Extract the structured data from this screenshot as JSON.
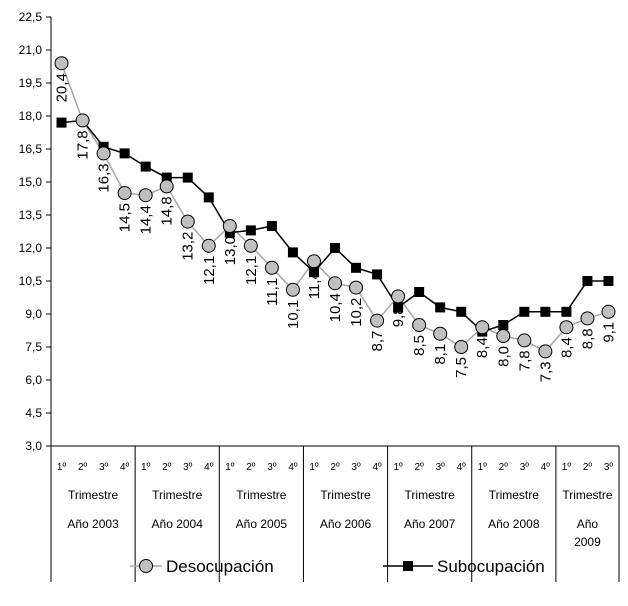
{
  "chart_data": {
    "type": "line",
    "ylim": [
      3.0,
      22.5
    ],
    "yticks": [
      "3,0",
      "4,5",
      "6,0",
      "7,5",
      "9,0",
      "10,5",
      "12,0",
      "13,5",
      "15,0",
      "16,5",
      "18,0",
      "19,5",
      "21,0",
      "22,5"
    ],
    "quarter_labels": [
      "1º",
      "2º",
      "3º",
      "4º",
      "1º",
      "2º",
      "3º",
      "4º",
      "1º",
      "2º",
      "3º",
      "4º",
      "1º",
      "2º",
      "3º",
      "4º",
      "1º",
      "2º",
      "3º",
      "4º",
      "1º",
      "2º",
      "3º",
      "4º",
      "1º",
      "2º",
      "3º"
    ],
    "groups": [
      {
        "period": "Trimestre",
        "year": "Año 2003",
        "count": 4
      },
      {
        "period": "Trimestre",
        "year": "Año 2004",
        "count": 4
      },
      {
        "period": "Trimestre",
        "year": "Año 2005",
        "count": 4
      },
      {
        "period": "Trimestre",
        "year": "Año 2006",
        "count": 4
      },
      {
        "period": "Trimestre",
        "year": "Año 2007",
        "count": 4
      },
      {
        "period": "Trimestre",
        "year": "Año 2008",
        "count": 4
      },
      {
        "period": "Trimestre",
        "year": "Año 2009",
        "count": 3
      }
    ],
    "series": [
      {
        "name": "Desocupación",
        "color": "#a6a6a6",
        "marker": "circle",
        "values": [
          20.4,
          17.8,
          16.3,
          14.5,
          14.4,
          14.8,
          13.2,
          12.1,
          13.0,
          12.1,
          11.1,
          10.1,
          11.4,
          10.4,
          10.2,
          8.7,
          9.8,
          8.5,
          8.1,
          7.5,
          8.4,
          8.0,
          7.8,
          7.3,
          8.4,
          8.8,
          9.1
        ],
        "labels": [
          "20,4",
          "17,8",
          "16,3",
          "14,5",
          "14,4",
          "14,8",
          "13,2",
          "12,1",
          "13,0",
          "12,1",
          "11,1",
          "10,1",
          "11,4",
          "10,4",
          "10,2",
          "8,7",
          "9,8",
          "8,5",
          "8,1",
          "7,5",
          "8,4",
          "8,0",
          "7,8",
          "7,3",
          "8,4",
          "8,8",
          "9,1"
        ]
      },
      {
        "name": "Subocupación",
        "color": "#000000",
        "marker": "square",
        "values": [
          17.7,
          17.8,
          16.6,
          16.3,
          15.7,
          15.2,
          15.2,
          14.3,
          12.7,
          12.8,
          13.0,
          11.8,
          10.9,
          12.0,
          11.1,
          10.8,
          9.3,
          10.0,
          9.3,
          9.1,
          8.2,
          8.5,
          9.1,
          9.1,
          9.1,
          10.5,
          10.5
        ]
      }
    ],
    "grid": false,
    "legend": "bottom"
  }
}
